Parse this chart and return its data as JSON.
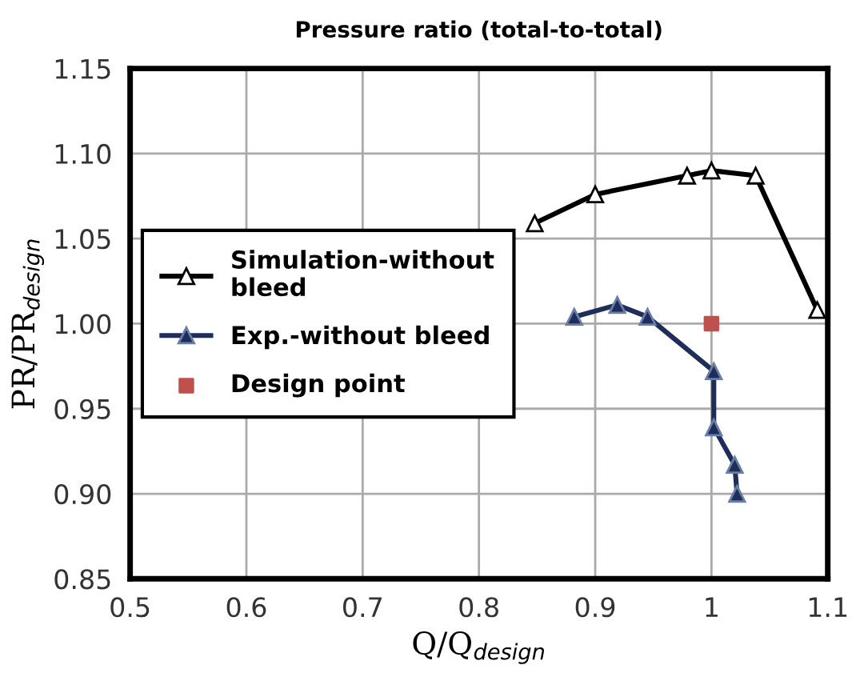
{
  "chart_data": {
    "type": "line",
    "title": "Pressure ratio (total-to-total)",
    "xlabel": "Q/Q$_{design}$",
    "ylabel": "PR/PR$_{design}$",
    "series": [
      {
        "name": "Simulation-without\nbleed",
        "color": "#000000",
        "marker": "triangle",
        "x": [
          0.848,
          0.9,
          0.979,
          1.0,
          1.038,
          1.091
        ],
        "values": [
          1.059,
          1.076,
          1.087,
          1.09,
          1.087,
          1.008
        ]
      },
      {
        "name": "Exp.-without bleed",
        "color": "#1f2d5a",
        "marker": "triangle",
        "x": [
          0.882,
          0.919,
          0.945,
          1.002,
          1.002,
          1.02,
          1.022
        ],
        "values": [
          1.004,
          1.011,
          1.004,
          0.972,
          0.939,
          0.917,
          0.9
        ]
      },
      {
        "name": "Design point",
        "type": "scatter",
        "color": "#c0504d",
        "marker": "square",
        "x": [
          1.0
        ],
        "values": [
          1.0
        ]
      }
    ],
    "xlim": [
      0.5,
      1.1
    ],
    "xticks": [
      0.5,
      0.6,
      0.7,
      0.8,
      0.9,
      1,
      1.1
    ],
    "ylim": [
      0.85,
      1.15
    ],
    "yticks": [
      {
        "value": 0.85,
        "label": "0.85"
      },
      {
        "value": 0.9,
        "label": "0.90"
      },
      {
        "value": 0.95,
        "label": "0.95"
      },
      {
        "value": 1.0,
        "label": "1.00"
      },
      {
        "value": 1.05,
        "label": "1.05"
      },
      {
        "value": 1.1,
        "label": "1.10"
      },
      {
        "value": 1.15,
        "label": "1.15"
      }
    ],
    "grid": true,
    "legend": "center left"
  }
}
